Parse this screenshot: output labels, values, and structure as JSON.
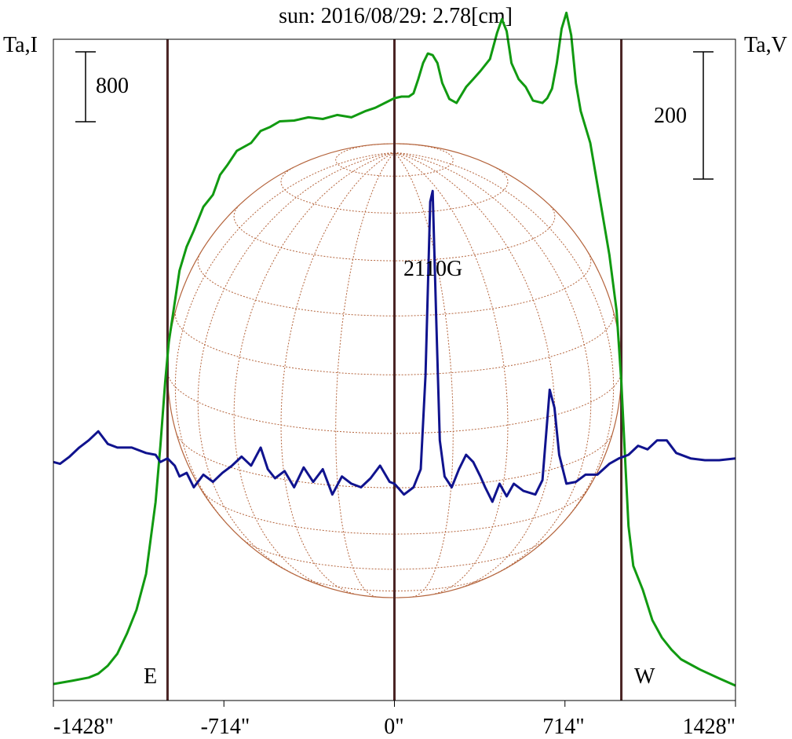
{
  "chart_data": {
    "type": "line",
    "title": "sun: 2016/08/29: 2.78[cm]",
    "left_axis_label": "Ta,I",
    "right_axis_label": "Ta,V",
    "x_ticks": [
      {
        "value": -1428,
        "label": "-1428\""
      },
      {
        "value": -714,
        "label": "-714\""
      },
      {
        "value": 0,
        "label": "0\""
      },
      {
        "value": 714,
        "label": "714\""
      },
      {
        "value": 1428,
        "label": "1428\""
      }
    ],
    "xlim": [
      -1428,
      1428
    ],
    "scale_bars": {
      "left": {
        "value": 800,
        "label": "800"
      },
      "right": {
        "value": 200,
        "label": "200"
      }
    },
    "limb_markers": [
      {
        "label": "E",
        "x": -950
      },
      {
        "label": "W",
        "x": 950
      }
    ],
    "center_line_x": 0,
    "annotations": [
      {
        "text": "2110G",
        "x": 170
      }
    ],
    "disk": {
      "radius_arcsec": 950,
      "color": "#b4643c"
    },
    "colors": {
      "intensity": "#119a11",
      "polarization": "#10138e",
      "title": "#1f1f78",
      "markers": "#4a2424"
    },
    "intensity_ylim": [
      0,
      8000
    ],
    "polarization_ylim": [
      -660,
      1170
    ],
    "series": [
      {
        "key": "intensity",
        "points": [
          [
            -1428,
            20
          ],
          [
            -1350,
            60
          ],
          [
            -1280,
            100
          ],
          [
            -1240,
            150
          ],
          [
            -1200,
            250
          ],
          [
            -1160,
            400
          ],
          [
            -1120,
            650
          ],
          [
            -1080,
            950
          ],
          [
            -1040,
            1400
          ],
          [
            -1000,
            2300
          ],
          [
            -980,
            3000
          ],
          [
            -960,
            3800
          ],
          [
            -945,
            4300
          ],
          [
            -920,
            4800
          ],
          [
            -900,
            5200
          ],
          [
            -870,
            5500
          ],
          [
            -840,
            5700
          ],
          [
            -800,
            6000
          ],
          [
            -760,
            6150
          ],
          [
            -730,
            6400
          ],
          [
            -700,
            6520
          ],
          [
            -660,
            6700
          ],
          [
            -600,
            6800
          ],
          [
            -560,
            6950
          ],
          [
            -520,
            7000
          ],
          [
            -480,
            7070
          ],
          [
            -420,
            7080
          ],
          [
            -360,
            7120
          ],
          [
            -300,
            7100
          ],
          [
            -240,
            7150
          ],
          [
            -180,
            7120
          ],
          [
            -120,
            7200
          ],
          [
            -80,
            7240
          ],
          [
            -40,
            7300
          ],
          [
            0,
            7360
          ],
          [
            30,
            7380
          ],
          [
            60,
            7380
          ],
          [
            80,
            7420
          ],
          [
            100,
            7600
          ],
          [
            120,
            7800
          ],
          [
            140,
            7920
          ],
          [
            160,
            7900
          ],
          [
            180,
            7800
          ],
          [
            200,
            7550
          ],
          [
            230,
            7350
          ],
          [
            260,
            7300
          ],
          [
            300,
            7500
          ],
          [
            330,
            7600
          ],
          [
            360,
            7700
          ],
          [
            400,
            7850
          ],
          [
            430,
            8180
          ],
          [
            450,
            8350
          ],
          [
            470,
            8200
          ],
          [
            490,
            7800
          ],
          [
            520,
            7600
          ],
          [
            550,
            7500
          ],
          [
            580,
            7330
          ],
          [
            620,
            7300
          ],
          [
            640,
            7360
          ],
          [
            660,
            7480
          ],
          [
            680,
            7800
          ],
          [
            700,
            8230
          ],
          [
            720,
            8430
          ],
          [
            740,
            8150
          ],
          [
            760,
            7550
          ],
          [
            780,
            7200
          ],
          [
            820,
            6800
          ],
          [
            860,
            6100
          ],
          [
            900,
            5400
          ],
          [
            930,
            4700
          ],
          [
            950,
            3800
          ],
          [
            965,
            2900
          ],
          [
            980,
            2000
          ],
          [
            1000,
            1500
          ],
          [
            1040,
            1200
          ],
          [
            1080,
            820
          ],
          [
            1120,
            600
          ],
          [
            1160,
            450
          ],
          [
            1200,
            330
          ],
          [
            1280,
            200
          ],
          [
            1360,
            90
          ],
          [
            1428,
            0
          ]
        ]
      },
      {
        "key": "polarization",
        "points": [
          [
            -1428,
            0
          ],
          [
            -1400,
            -5
          ],
          [
            -1360,
            15
          ],
          [
            -1320,
            40
          ],
          [
            -1280,
            60
          ],
          [
            -1240,
            85
          ],
          [
            -1200,
            50
          ],
          [
            -1160,
            40
          ],
          [
            -1100,
            40
          ],
          [
            -1040,
            25
          ],
          [
            -1000,
            20
          ],
          [
            -980,
            0
          ],
          [
            -950,
            10
          ],
          [
            -920,
            -10
          ],
          [
            -900,
            -40
          ],
          [
            -870,
            -30
          ],
          [
            -840,
            -70
          ],
          [
            -800,
            -35
          ],
          [
            -760,
            -55
          ],
          [
            -720,
            -30
          ],
          [
            -680,
            -10
          ],
          [
            -640,
            15
          ],
          [
            -600,
            -10
          ],
          [
            -560,
            40
          ],
          [
            -530,
            -20
          ],
          [
            -500,
            -45
          ],
          [
            -460,
            -25
          ],
          [
            -420,
            -70
          ],
          [
            -380,
            -15
          ],
          [
            -340,
            -55
          ],
          [
            -300,
            -20
          ],
          [
            -260,
            -90
          ],
          [
            -220,
            -40
          ],
          [
            -180,
            -60
          ],
          [
            -140,
            -70
          ],
          [
            -100,
            -45
          ],
          [
            -60,
            -10
          ],
          [
            -20,
            -55
          ],
          [
            0,
            -60
          ],
          [
            40,
            -90
          ],
          [
            80,
            -70
          ],
          [
            110,
            -20
          ],
          [
            130,
            240
          ],
          [
            150,
            720
          ],
          [
            160,
            750
          ],
          [
            175,
            400
          ],
          [
            190,
            60
          ],
          [
            210,
            -40
          ],
          [
            240,
            -70
          ],
          [
            270,
            -20
          ],
          [
            300,
            20
          ],
          [
            330,
            0
          ],
          [
            360,
            -40
          ],
          [
            380,
            -70
          ],
          [
            410,
            -110
          ],
          [
            440,
            -60
          ],
          [
            470,
            -95
          ],
          [
            500,
            -60
          ],
          [
            540,
            -80
          ],
          [
            590,
            -90
          ],
          [
            620,
            -50
          ],
          [
            650,
            200
          ],
          [
            670,
            150
          ],
          [
            690,
            20
          ],
          [
            720,
            -60
          ],
          [
            760,
            -55
          ],
          [
            800,
            -35
          ],
          [
            850,
            -35
          ],
          [
            900,
            -5
          ],
          [
            940,
            10
          ],
          [
            980,
            20
          ],
          [
            1020,
            45
          ],
          [
            1060,
            35
          ],
          [
            1100,
            60
          ],
          [
            1140,
            60
          ],
          [
            1180,
            25
          ],
          [
            1240,
            10
          ],
          [
            1300,
            5
          ],
          [
            1360,
            5
          ],
          [
            1428,
            10
          ]
        ]
      }
    ]
  }
}
